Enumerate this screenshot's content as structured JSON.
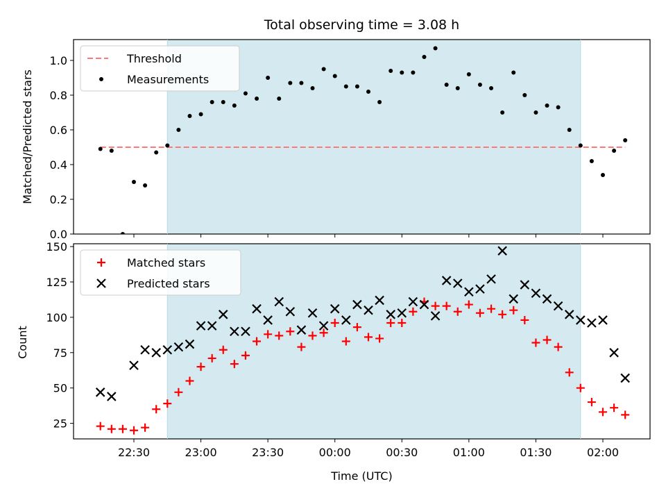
{
  "chart_data": [
    {
      "type": "scatter",
      "title": "Total observing time = 3.08 h",
      "xlabel": "",
      "ylabel": "Matched/Predicted stars",
      "ylim": [
        0,
        1.12
      ],
      "yticks": [
        "0.0",
        "0.2",
        "0.4",
        "0.6",
        "0.8",
        "1.0"
      ],
      "x_unit": "minutes after 22:00 UTC",
      "shaded_interval": [
        "22:45",
        "01:50"
      ],
      "shade_color": "#d4eaf0",
      "grid": false,
      "legend": {
        "placement": "top-left",
        "entries": [
          {
            "label": "Threshold",
            "style": "dashed-line",
            "color": "#ff7777"
          },
          {
            "label": "Measurements",
            "style": "dot",
            "color": "#000000"
          }
        ]
      },
      "series": [
        {
          "name": "Threshold",
          "style": "dashed-line",
          "color": "#ff7777",
          "x": [
            "22:15",
            "02:10"
          ],
          "values": [
            0.5,
            0.5
          ]
        },
        {
          "name": "Measurements",
          "style": "dot",
          "color": "#000000",
          "x": [
            "22:15",
            "22:20",
            "22:25",
            "22:30",
            "22:35",
            "22:40",
            "22:45",
            "22:50",
            "22:55",
            "23:00",
            "23:05",
            "23:10",
            "23:15",
            "23:20",
            "23:25",
            "23:30",
            "23:35",
            "23:40",
            "23:45",
            "23:50",
            "23:55",
            "00:00",
            "00:05",
            "00:10",
            "00:15",
            "00:20",
            "00:25",
            "00:30",
            "00:35",
            "00:40",
            "00:45",
            "00:50",
            "00:55",
            "01:00",
            "01:05",
            "01:10",
            "01:15",
            "01:20",
            "01:25",
            "01:30",
            "01:35",
            "01:40",
            "01:45",
            "01:50",
            "01:55",
            "02:00",
            "02:05",
            "02:10"
          ],
          "values": [
            0.49,
            0.48,
            0.0,
            0.3,
            0.28,
            0.47,
            0.51,
            0.6,
            0.68,
            0.69,
            0.76,
            0.76,
            0.74,
            0.81,
            0.78,
            0.9,
            0.78,
            0.87,
            0.87,
            0.84,
            0.95,
            0.91,
            0.85,
            0.85,
            0.82,
            0.76,
            0.94,
            0.93,
            0.93,
            1.02,
            1.07,
            0.86,
            0.84,
            0.92,
            0.86,
            0.84,
            0.7,
            0.93,
            0.8,
            0.7,
            0.74,
            0.73,
            0.6,
            0.51,
            0.42,
            0.34,
            0.48,
            0.54
          ]
        }
      ]
    },
    {
      "type": "scatter",
      "title": "",
      "xlabel": "Time (UTC)",
      "ylabel": "Count",
      "ylim": [
        14,
        152
      ],
      "yticks": [
        "25",
        "50",
        "75",
        "100",
        "125",
        "150"
      ],
      "xticks": [
        "22:30",
        "23:00",
        "23:30",
        "00:00",
        "00:30",
        "01:00",
        "01:30",
        "02:00"
      ],
      "x_unit": "minutes after 22:00 UTC",
      "shaded_interval": [
        "22:45",
        "01:50"
      ],
      "shade_color": "#d4eaf0",
      "grid": false,
      "legend": {
        "placement": "top-left",
        "entries": [
          {
            "label": "Matched stars",
            "marker": "plus",
            "color": "#ff0000"
          },
          {
            "label": "Predicted stars",
            "marker": "x",
            "color": "#000000"
          }
        ]
      },
      "series": [
        {
          "name": "Matched stars",
          "marker": "plus",
          "color": "#ff0000",
          "x": [
            "22:15",
            "22:20",
            "22:25",
            "22:30",
            "22:35",
            "22:40",
            "22:45",
            "22:50",
            "22:55",
            "23:00",
            "23:05",
            "23:10",
            "23:15",
            "23:20",
            "23:25",
            "23:30",
            "23:35",
            "23:40",
            "23:45",
            "23:50",
            "23:55",
            "00:00",
            "00:05",
            "00:10",
            "00:15",
            "00:20",
            "00:25",
            "00:30",
            "00:35",
            "00:40",
            "00:45",
            "00:50",
            "00:55",
            "01:00",
            "01:05",
            "01:10",
            "01:15",
            "01:20",
            "01:25",
            "01:30",
            "01:35",
            "01:40",
            "01:45",
            "01:50",
            "01:55",
            "02:00",
            "02:05",
            "02:10"
          ],
          "values": [
            23,
            21,
            21,
            20,
            22,
            35,
            39,
            47,
            55,
            65,
            71,
            77,
            67,
            73,
            83,
            88,
            87,
            90,
            79,
            87,
            89,
            96,
            83,
            93,
            86,
            85,
            96,
            96,
            104,
            111,
            108,
            108,
            104,
            109,
            103,
            106,
            102,
            105,
            98,
            82,
            84,
            79,
            61,
            50,
            40,
            33,
            36,
            31
          ]
        },
        {
          "name": "Predicted stars",
          "marker": "x",
          "color": "#000000",
          "x": [
            "22:15",
            "22:20",
            "22:30",
            "22:35",
            "22:40",
            "22:45",
            "22:50",
            "22:55",
            "23:00",
            "23:05",
            "23:10",
            "23:15",
            "23:20",
            "23:25",
            "23:30",
            "23:35",
            "23:40",
            "23:45",
            "23:50",
            "23:55",
            "00:00",
            "00:05",
            "00:10",
            "00:15",
            "00:20",
            "00:25",
            "00:30",
            "00:35",
            "00:40",
            "00:45",
            "00:50",
            "00:55",
            "01:00",
            "01:05",
            "01:10",
            "01:15",
            "01:20",
            "01:25",
            "01:30",
            "01:35",
            "01:40",
            "01:45",
            "01:50",
            "01:55",
            "02:00",
            "02:05",
            "02:10"
          ],
          "values": [
            47,
            44,
            66,
            77,
            75,
            77,
            79,
            81,
            94,
            94,
            102,
            90,
            90,
            106,
            98,
            111,
            104,
            91,
            103,
            94,
            106,
            98,
            109,
            105,
            112,
            102,
            103,
            111,
            109,
            101,
            126,
            124,
            118,
            120,
            127,
            147,
            113,
            123,
            117,
            113,
            108,
            102,
            98,
            96,
            98,
            75,
            57
          ]
        }
      ]
    }
  ]
}
